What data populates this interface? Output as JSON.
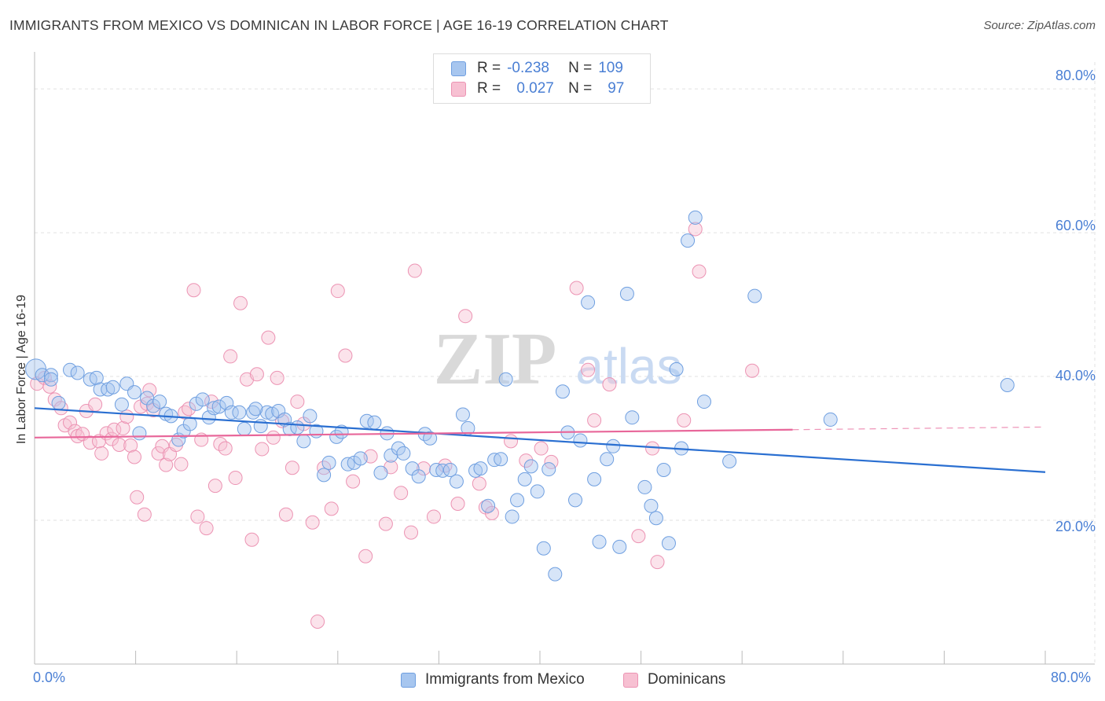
{
  "title": "IMMIGRANTS FROM MEXICO VS DOMINICAN IN LABOR FORCE | AGE 16-19 CORRELATION CHART",
  "source": "Source: ZipAtlas.com",
  "watermark": {
    "zip": "ZIP",
    "atlas": "atlas"
  },
  "legend": {
    "r_label": "R =",
    "n_label": "N =",
    "rows": [
      {
        "r": "-0.238",
        "n": "109",
        "color": "#a7c6ef",
        "border": "#6f9fe0"
      },
      {
        "r": "0.027",
        "n": "97",
        "color": "#f7c0d2",
        "border": "#ec93b3"
      }
    ]
  },
  "bottom_legend": [
    {
      "label": "Immigrants from Mexico",
      "color": "#a7c6ef",
      "border": "#6f9fe0"
    },
    {
      "label": "Dominicans",
      "color": "#f7c0d2",
      "border": "#ec93b3"
    }
  ],
  "chart_data": {
    "type": "scatter",
    "title": "IMMIGRANTS FROM MEXICO VS DOMINICAN IN LABOR FORCE | AGE 16-19 CORRELATION CHART",
    "xlabel": "",
    "ylabel": "In Labor Force | Age 16-19",
    "xlim": [
      0,
      80
    ],
    "ylim": [
      0,
      80
    ],
    "x_tick_labels": [
      "0.0%",
      "80.0%"
    ],
    "y_tick_labels": [
      "20.0%",
      "40.0%",
      "60.0%",
      "80.0%"
    ],
    "y_ticks": [
      20,
      40,
      60,
      80
    ],
    "grid": true,
    "legend_position": "top-center",
    "series": [
      {
        "name": "Immigrants from Mexico",
        "color": "#7aa8e6",
        "trend": {
          "x": [
            0,
            80
          ],
          "y": [
            35.6,
            26.7
          ],
          "color": "#2a6fd1"
        },
        "points": [
          [
            0.1,
            41.0
          ],
          [
            0.6,
            40.2
          ],
          [
            1.3,
            40.2
          ],
          [
            1.3,
            39.6
          ],
          [
            1.9,
            36.3
          ],
          [
            2.8,
            40.9
          ],
          [
            3.4,
            40.5
          ],
          [
            4.4,
            39.6
          ],
          [
            4.9,
            39.8
          ],
          [
            5.2,
            38.2
          ],
          [
            5.8,
            38.2
          ],
          [
            6.2,
            38.5
          ],
          [
            6.9,
            36.1
          ],
          [
            7.3,
            39.0
          ],
          [
            7.9,
            37.8
          ],
          [
            8.3,
            32.1
          ],
          [
            8.9,
            37.0
          ],
          [
            9.4,
            35.9
          ],
          [
            9.9,
            36.5
          ],
          [
            10.4,
            34.8
          ],
          [
            10.8,
            34.5
          ],
          [
            11.4,
            31.2
          ],
          [
            11.8,
            32.4
          ],
          [
            12.3,
            33.4
          ],
          [
            12.8,
            36.2
          ],
          [
            13.3,
            36.8
          ],
          [
            13.8,
            34.3
          ],
          [
            14.2,
            35.6
          ],
          [
            14.6,
            35.8
          ],
          [
            15.2,
            36.3
          ],
          [
            15.6,
            35.0
          ],
          [
            16.2,
            35.0
          ],
          [
            16.6,
            32.7
          ],
          [
            17.3,
            35.0
          ],
          [
            17.9,
            33.1
          ],
          [
            18.4,
            35.0
          ],
          [
            18.8,
            34.8
          ],
          [
            19.3,
            35.2
          ],
          [
            19.8,
            34.0
          ],
          [
            20.2,
            32.7
          ],
          [
            20.8,
            32.9
          ],
          [
            21.3,
            31.0
          ],
          [
            21.8,
            34.5
          ],
          [
            22.3,
            32.4
          ],
          [
            22.9,
            26.3
          ],
          [
            23.3,
            28.0
          ],
          [
            23.9,
            31.6
          ],
          [
            24.3,
            32.3
          ],
          [
            24.8,
            27.8
          ],
          [
            25.3,
            28.0
          ],
          [
            25.8,
            28.6
          ],
          [
            26.3,
            33.8
          ],
          [
            26.9,
            33.6
          ],
          [
            27.4,
            26.6
          ],
          [
            27.9,
            32.1
          ],
          [
            28.2,
            29.0
          ],
          [
            28.8,
            30.0
          ],
          [
            29.2,
            29.3
          ],
          [
            29.9,
            27.2
          ],
          [
            30.4,
            26.1
          ],
          [
            30.9,
            32.0
          ],
          [
            31.3,
            31.4
          ],
          [
            31.8,
            27.0
          ],
          [
            32.3,
            26.9
          ],
          [
            32.9,
            27.0
          ],
          [
            33.4,
            25.4
          ],
          [
            33.9,
            34.7
          ],
          [
            34.3,
            32.8
          ],
          [
            34.9,
            26.9
          ],
          [
            35.3,
            27.2
          ],
          [
            35.9,
            22.0
          ],
          [
            36.4,
            28.4
          ],
          [
            36.9,
            28.5
          ],
          [
            37.3,
            39.6
          ],
          [
            37.8,
            20.5
          ],
          [
            38.2,
            22.8
          ],
          [
            38.8,
            25.7
          ],
          [
            39.3,
            27.5
          ],
          [
            39.8,
            24.0
          ],
          [
            40.3,
            16.1
          ],
          [
            40.7,
            27.1
          ],
          [
            41.2,
            12.5
          ],
          [
            41.8,
            37.9
          ],
          [
            42.2,
            32.2
          ],
          [
            42.8,
            22.8
          ],
          [
            43.2,
            31.1
          ],
          [
            43.8,
            50.3
          ],
          [
            44.3,
            25.7
          ],
          [
            44.7,
            17.0
          ],
          [
            45.3,
            28.5
          ],
          [
            45.8,
            30.3
          ],
          [
            46.3,
            16.3
          ],
          [
            46.9,
            51.5
          ],
          [
            47.3,
            34.3
          ],
          [
            48.3,
            24.6
          ],
          [
            48.8,
            22.0
          ],
          [
            49.2,
            20.3
          ],
          [
            49.8,
            27.0
          ],
          [
            50.2,
            16.8
          ],
          [
            50.8,
            41.0
          ],
          [
            51.2,
            30.0
          ],
          [
            51.7,
            58.9
          ],
          [
            52.3,
            62.1
          ],
          [
            53.0,
            36.5
          ],
          [
            55.0,
            28.2
          ],
          [
            57.0,
            51.2
          ],
          [
            63.0,
            34.0
          ],
          [
            77.0,
            38.8
          ],
          [
            17.5,
            35.5
          ]
        ]
      },
      {
        "name": "Dominicans",
        "color": "#f0a0bd",
        "trend": {
          "x": [
            0,
            60
          ],
          "y": [
            31.5,
            32.6
          ],
          "color": "#e8679a"
        },
        "points": [
          [
            0.2,
            39.0
          ],
          [
            0.8,
            39.8
          ],
          [
            1.2,
            38.6
          ],
          [
            1.6,
            36.8
          ],
          [
            2.1,
            35.6
          ],
          [
            2.4,
            33.2
          ],
          [
            2.8,
            33.6
          ],
          [
            3.2,
            32.4
          ],
          [
            3.4,
            31.7
          ],
          [
            3.8,
            32.0
          ],
          [
            4.1,
            35.2
          ],
          [
            4.4,
            30.8
          ],
          [
            4.8,
            36.1
          ],
          [
            5.1,
            31.0
          ],
          [
            5.3,
            29.3
          ],
          [
            5.7,
            32.1
          ],
          [
            6.1,
            31.3
          ],
          [
            6.3,
            32.6
          ],
          [
            6.7,
            30.5
          ],
          [
            7.0,
            32.8
          ],
          [
            7.3,
            34.4
          ],
          [
            7.6,
            30.4
          ],
          [
            7.9,
            28.8
          ],
          [
            8.1,
            23.2
          ],
          [
            8.4,
            35.8
          ],
          [
            8.7,
            20.8
          ],
          [
            8.9,
            36.2
          ],
          [
            9.1,
            38.1
          ],
          [
            9.4,
            35.3
          ],
          [
            9.8,
            29.3
          ],
          [
            10.1,
            30.3
          ],
          [
            10.4,
            27.7
          ],
          [
            10.7,
            29.2
          ],
          [
            11.2,
            30.5
          ],
          [
            11.6,
            27.8
          ],
          [
            11.9,
            35.0
          ],
          [
            12.2,
            35.5
          ],
          [
            12.6,
            52.0
          ],
          [
            12.9,
            20.5
          ],
          [
            13.2,
            31.2
          ],
          [
            13.6,
            18.9
          ],
          [
            14.0,
            36.5
          ],
          [
            14.3,
            24.8
          ],
          [
            14.7,
            30.6
          ],
          [
            15.1,
            30.0
          ],
          [
            15.5,
            42.8
          ],
          [
            15.9,
            25.9
          ],
          [
            16.3,
            50.2
          ],
          [
            16.8,
            39.6
          ],
          [
            17.2,
            17.3
          ],
          [
            17.6,
            40.3
          ],
          [
            18.0,
            29.9
          ],
          [
            18.5,
            45.4
          ],
          [
            18.9,
            31.5
          ],
          [
            19.2,
            39.8
          ],
          [
            19.6,
            33.8
          ],
          [
            19.9,
            20.8
          ],
          [
            20.4,
            27.3
          ],
          [
            20.8,
            36.5
          ],
          [
            21.3,
            33.4
          ],
          [
            22.0,
            19.7
          ],
          [
            22.4,
            5.9
          ],
          [
            22.9,
            27.3
          ],
          [
            23.5,
            21.6
          ],
          [
            24.0,
            51.9
          ],
          [
            24.6,
            42.9
          ],
          [
            25.2,
            25.4
          ],
          [
            26.2,
            15.0
          ],
          [
            26.6,
            28.9
          ],
          [
            27.8,
            19.5
          ],
          [
            28.2,
            27.4
          ],
          [
            29.0,
            23.8
          ],
          [
            29.8,
            18.3
          ],
          [
            30.1,
            54.7
          ],
          [
            30.8,
            27.2
          ],
          [
            31.6,
            20.5
          ],
          [
            32.5,
            27.6
          ],
          [
            33.5,
            22.3
          ],
          [
            34.1,
            48.4
          ],
          [
            35.2,
            25.1
          ],
          [
            35.7,
            21.8
          ],
          [
            36.2,
            21.0
          ],
          [
            37.7,
            31.0
          ],
          [
            38.9,
            28.3
          ],
          [
            40.1,
            30.0
          ],
          [
            40.9,
            28.1
          ],
          [
            42.9,
            52.3
          ],
          [
            43.8,
            40.9
          ],
          [
            44.3,
            33.9
          ],
          [
            45.5,
            38.9
          ],
          [
            47.8,
            17.8
          ],
          [
            48.9,
            30.0
          ],
          [
            49.3,
            14.2
          ],
          [
            51.4,
            33.9
          ],
          [
            52.3,
            60.5
          ],
          [
            52.6,
            54.6
          ],
          [
            56.8,
            40.8
          ]
        ]
      }
    ]
  }
}
